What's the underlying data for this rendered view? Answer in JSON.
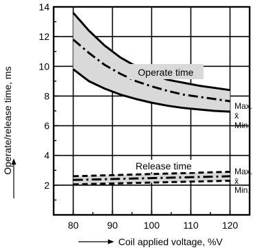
{
  "chart_data": {
    "type": "line",
    "xlabel": "Coil applied voltage, %V",
    "ylabel": "Operate/release time, ms",
    "xlim": [
      75,
      125
    ],
    "ylim": [
      0,
      14
    ],
    "xticks": [
      80,
      90,
      100,
      110,
      120
    ],
    "yticks": [
      2,
      4,
      6,
      8,
      10,
      12,
      14
    ],
    "grid": true,
    "annotations": [
      "Operate time",
      "Release time"
    ],
    "groups": [
      {
        "name": "Operate time",
        "band_fill": "#d9d9d9",
        "series": [
          {
            "name": "Max.",
            "style": "solid",
            "x": [
              80,
              84,
              88,
              92,
              96,
              100,
              104,
              108,
              112,
              116,
              120
            ],
            "y": [
              13.6,
              12.4,
              11.4,
              10.6,
              10.0,
              9.5,
              9.1,
              8.9,
              8.7,
              8.55,
              8.4
            ]
          },
          {
            "name": "x̄",
            "style": "dashdot",
            "x": [
              80,
              84,
              88,
              92,
              96,
              100,
              104,
              108,
              112,
              116,
              120
            ],
            "y": [
              11.8,
              10.9,
              10.1,
              9.5,
              9.0,
              8.65,
              8.35,
              8.1,
              7.95,
              7.8,
              7.65
            ]
          },
          {
            "name": "Min.",
            "style": "solid",
            "x": [
              80,
              84,
              88,
              92,
              96,
              100,
              104,
              108,
              112,
              116,
              120
            ],
            "y": [
              9.8,
              9.0,
              8.5,
              8.1,
              7.8,
              7.55,
              7.35,
              7.2,
              7.1,
              7.0,
              6.95
            ]
          }
        ]
      },
      {
        "name": "Release time",
        "band_fill": "#d9d9d9",
        "series": [
          {
            "name": "Max.",
            "style": "dashed",
            "x": [
              80,
              120
            ],
            "y": [
              2.6,
              2.9
            ]
          },
          {
            "name": "x̄",
            "style": "dashdot",
            "x": [
              80,
              120
            ],
            "y": [
              2.35,
              2.6
            ]
          },
          {
            "name": "Min.",
            "style": "dashed",
            "x": [
              80,
              120
            ],
            "y": [
              2.05,
              2.3
            ]
          }
        ]
      }
    ]
  }
}
